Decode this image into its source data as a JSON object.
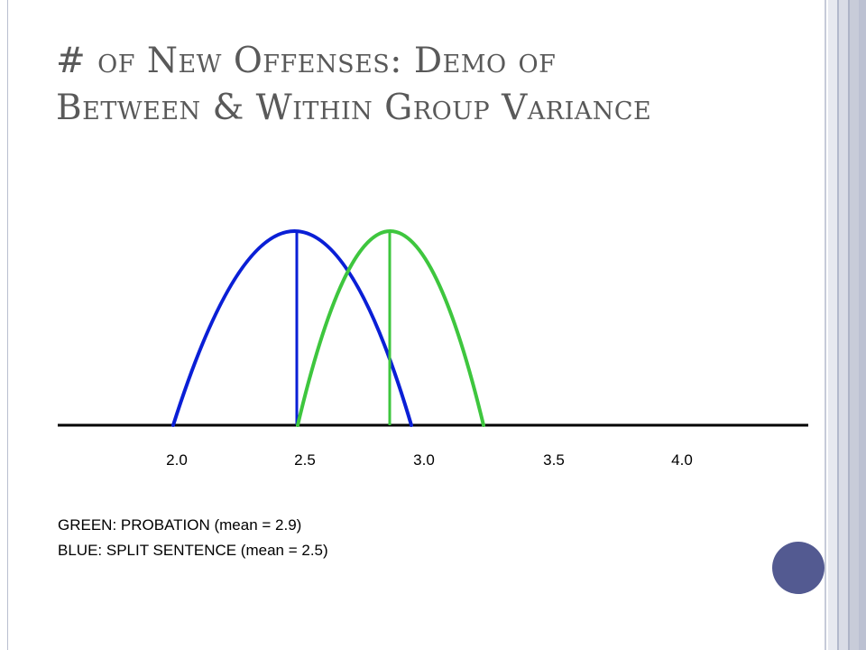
{
  "slide": {
    "title_line1": "# of New Offenses: Demo of",
    "title_line2": "Between & Within Group Variance"
  },
  "chart_data": {
    "type": "line",
    "title": "",
    "xlabel": "",
    "ylabel": "",
    "x_ticks": [
      "2.0",
      "2.5",
      "3.0",
      "3.5",
      "4.0"
    ],
    "series": [
      {
        "name": "BLUE: SPLIT SENTENCE",
        "color": "#0a1fd6",
        "shape": "inverted parabola",
        "mean": 2.5,
        "x_start": 2.0,
        "x_end": 2.98,
        "relative_peak": 1.0
      },
      {
        "name": "GREEN: PROBATION",
        "color": "#3ec63e",
        "shape": "inverted parabola",
        "mean": 2.9,
        "x_start": 2.5,
        "x_end": 3.28,
        "relative_peak": 1.0
      }
    ]
  },
  "legend": {
    "line1": "GREEN: PROBATION (mean = 2.9)",
    "line2": "BLUE: SPLIT SENTENCE (mean = 2.5)"
  },
  "colors": {
    "title": "#595959",
    "blue_curve": "#0a1fd6",
    "green_curve": "#3ec63e",
    "accent_circle": "#535a91"
  }
}
